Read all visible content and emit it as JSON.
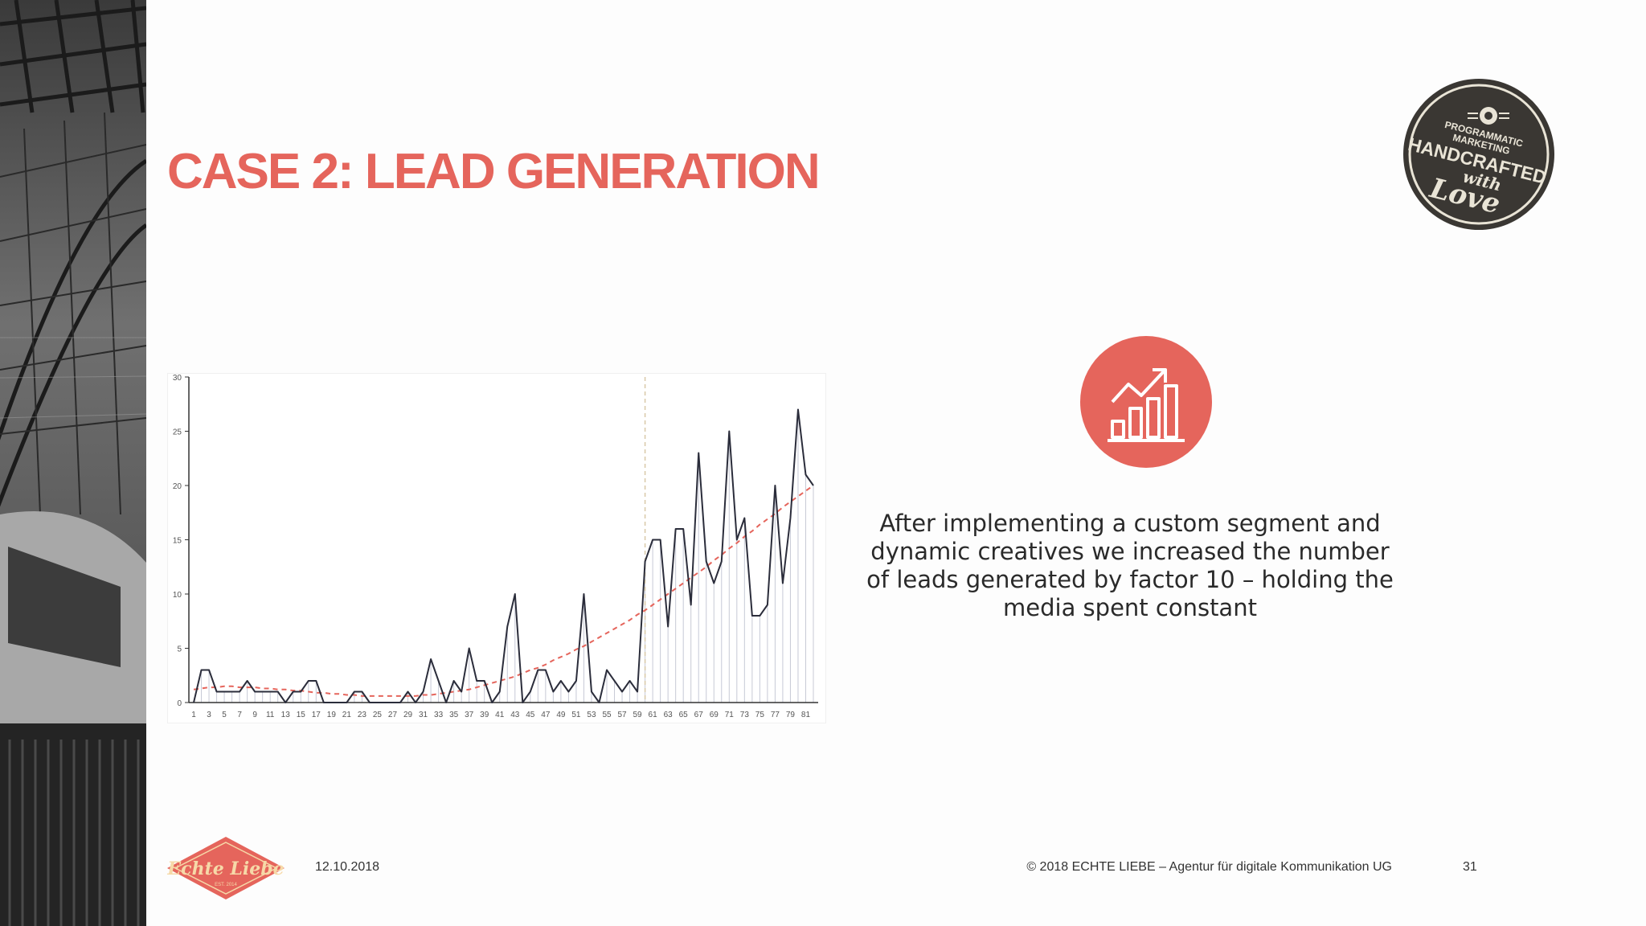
{
  "slide": {
    "title": "CASE 2: LEAD GENERATION",
    "description": "After implementing a custom segment and dynamic creatives we increased the number of leads generated by factor 10 – holding the media spent constant",
    "date": "12.10.2018",
    "copyright": "© 2018 ECHTE LIEBE – Agentur für digitale Kommunikation UG",
    "page_number": "31"
  },
  "badge": {
    "line1": "PROGRAMMATIC",
    "line2": "MARKETING",
    "line3": "HANDCRAFTED",
    "line4": "with",
    "line5": "Love"
  },
  "logo": {
    "name": "Echte Liebe",
    "est": "EST. 2014"
  },
  "icons": {
    "chart": "growth-bar-chart-icon",
    "badge": "gear-icon"
  },
  "colors": {
    "accent": "#e5655c",
    "badge_bg": "#3a3733",
    "text": "#2a2a2a",
    "series": "#2b2d3b",
    "trend": "#e5655c",
    "divider": "#d8c9a8"
  },
  "chart_data": {
    "type": "line",
    "x": [
      1,
      2,
      3,
      4,
      5,
      6,
      7,
      8,
      9,
      10,
      11,
      12,
      13,
      14,
      15,
      16,
      17,
      18,
      19,
      20,
      21,
      22,
      23,
      24,
      25,
      26,
      27,
      28,
      29,
      30,
      31,
      32,
      33,
      34,
      35,
      36,
      37,
      38,
      39,
      40,
      41,
      42,
      43,
      44,
      45,
      46,
      47,
      48,
      49,
      50,
      51,
      52,
      53,
      54,
      55,
      56,
      57,
      58,
      59,
      60,
      61,
      62,
      63,
      64,
      65,
      66,
      67,
      68,
      69,
      70,
      71,
      72,
      73,
      74,
      75,
      76,
      77,
      78,
      79,
      80,
      81,
      82
    ],
    "x_ticks": [
      "1",
      "3",
      "5",
      "7",
      "9",
      "11",
      "13",
      "15",
      "17",
      "19",
      "21",
      "23",
      "25",
      "27",
      "29",
      "31",
      "33",
      "35",
      "37",
      "39",
      "41",
      "43",
      "45",
      "47",
      "49",
      "51",
      "53",
      "55",
      "57",
      "59",
      "61",
      "63",
      "65",
      "67",
      "69",
      "71",
      "73",
      "75",
      "77",
      "79",
      "81"
    ],
    "ylim": [
      0,
      30
    ],
    "y_ticks": [
      "0",
      "5",
      "10",
      "15",
      "20",
      "25",
      "30"
    ],
    "series": [
      {
        "values": [
          0,
          3,
          3,
          1,
          1,
          1,
          1,
          2,
          1,
          1,
          1,
          1,
          0,
          1,
          1,
          2,
          2,
          0,
          0,
          0,
          0,
          1,
          1,
          0,
          0,
          0,
          0,
          0,
          1,
          0,
          1,
          4,
          2,
          0,
          2,
          1,
          5,
          2,
          2,
          0,
          1,
          7,
          10,
          0,
          1,
          3,
          3,
          1,
          2,
          1,
          2,
          10,
          1,
          0,
          3,
          2,
          1,
          2,
          1,
          13,
          15,
          15,
          7,
          16,
          16,
          9,
          23,
          13,
          11,
          13,
          25,
          15,
          17,
          8,
          8,
          9,
          20,
          11,
          17,
          27,
          21,
          20
        ]
      },
      {
        "values": [
          1.2,
          1.3,
          1.4,
          1.4,
          1.5,
          1.5,
          1.4,
          1.4,
          1.4,
          1.3,
          1.3,
          1.2,
          1.2,
          1.1,
          1.1,
          1.0,
          0.9,
          0.9,
          0.8,
          0.8,
          0.7,
          0.7,
          0.6,
          0.6,
          0.6,
          0.6,
          0.6,
          0.6,
          0.6,
          0.6,
          0.7,
          0.7,
          0.8,
          0.9,
          1.0,
          1.1,
          1.2,
          1.4,
          1.6,
          1.8,
          2.0,
          2.2,
          2.4,
          2.7,
          3.0,
          3.2,
          3.5,
          3.9,
          4.2,
          4.5,
          4.9,
          5.2,
          5.6,
          6.0,
          6.4,
          6.8,
          7.2,
          7.6,
          8.1,
          8.5,
          9.0,
          9.5,
          10.0,
          10.5,
          11.0,
          11.5,
          12.0,
          12.5,
          13.1,
          13.6,
          14.2,
          14.7,
          15.3,
          15.8,
          16.4,
          16.9,
          17.4,
          18.0,
          18.5,
          19.0,
          19.5,
          20.0
        ]
      }
    ],
    "divider_x": 60
  }
}
